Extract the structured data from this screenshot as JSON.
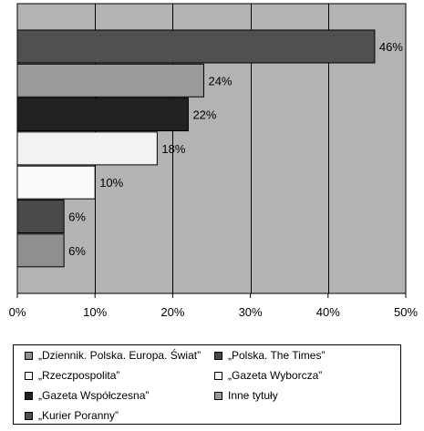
{
  "chart_data": {
    "type": "bar",
    "orientation": "horizontal",
    "xlim": [
      0,
      50
    ],
    "x_ticks": [
      "0%",
      "10%",
      "20%",
      "30%",
      "40%",
      "50%"
    ],
    "grid": true,
    "plot_background": "#b3b3b3",
    "bars": [
      {
        "series": "„Kurier Poranny”",
        "value": 46,
        "label": "46%",
        "color": "#505050"
      },
      {
        "series": "Inne tytuły",
        "value": 24,
        "label": "24%",
        "color": "#9a9a9a"
      },
      {
        "series": "„Gazeta Współczesna”",
        "value": 22,
        "label": "22%",
        "color": "#222222"
      },
      {
        "series": "„Gazeta Wyborcza”",
        "value": 18,
        "label": "18%",
        "color": "#f2f2f2"
      },
      {
        "series": "„Rzeczpospolita”",
        "value": 10,
        "label": "10%",
        "color": "#fafafa"
      },
      {
        "series": "„Polska. The Times”",
        "value": 6,
        "label": "6%",
        "color": "#4a4a4a"
      },
      {
        "series": "„Dziennik. Polska. Europa. Świat”",
        "value": 6,
        "label": "6%",
        "color": "#8f8f8f"
      }
    ],
    "legend_position": "bottom",
    "legend": [
      {
        "text": "„Dziennik. Polska. Europa. Świat”",
        "color": "#8f8f8f"
      },
      {
        "text": "„Polska. The Times”",
        "color": "#4a4a4a"
      },
      {
        "text": "„Rzeczpospolita”",
        "color": "#fafafa"
      },
      {
        "text": "„Gazeta Wyborcza”",
        "color": "#f2f2f2"
      },
      {
        "text": "„Gazeta Współczesna”",
        "color": "#222222"
      },
      {
        "text": "Inne tytuły",
        "color": "#9a9a9a"
      },
      {
        "text": "„Kurier Poranny”",
        "color": "#505050"
      }
    ]
  }
}
